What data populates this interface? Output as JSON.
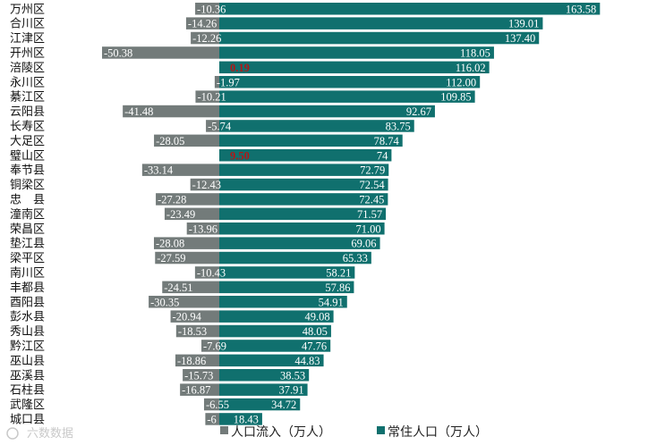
{
  "chart_data": {
    "type": "bar",
    "orientation": "horizontal",
    "categories": [
      "万州区",
      "合川区",
      "江津区",
      "开州区",
      "涪陵区",
      "永川区",
      "綦江区",
      "云阳县",
      "长寿区",
      "大足区",
      "璧山区",
      "奉节县",
      "铜梁区",
      "忠　县",
      "潼南区",
      "荣昌区",
      "垫江县",
      "梁平区",
      "南川区",
      "丰都县",
      "酉阳县",
      "彭水县",
      "秀山县",
      "黔江区",
      "巫山县",
      "巫溪县",
      "石柱县",
      "武隆区",
      "城口县"
    ],
    "series": [
      {
        "name": "人口流入（万人）",
        "color": "#737b7a",
        "highlight_color": "#d9707b",
        "values": [
          -10.36,
          -14.26,
          -12.26,
          -50.38,
          0.19,
          -1.97,
          -10.21,
          -41.48,
          -5.74,
          -28.05,
          9.5,
          -33.14,
          -12.43,
          -27.28,
          -23.49,
          -13.96,
          -28.08,
          -27.59,
          -10.43,
          -24.51,
          -30.35,
          -20.94,
          -18.53,
          -7.69,
          -18.86,
          -15.73,
          -16.87,
          -6.55,
          -6.0
        ],
        "labels": [
          "-10.36",
          "-14.26",
          "-12.26",
          "-50.38",
          "0.19",
          "-1.97",
          "-10.21",
          "-41.48",
          "-5.74",
          "-28.05",
          "9.50",
          "-33.14",
          "-12.43",
          "-27.28",
          "-23.49",
          "-13.96",
          "-28.08",
          "-27.59",
          "-10.43",
          "-24.51",
          "-30.35",
          "-20.94",
          "-18.53",
          "-7.69",
          "-18.86",
          "-15.73",
          "-16.87",
          "-6.55",
          "-6"
        ]
      },
      {
        "name": "常住人口（万人）",
        "color": "#10706e",
        "values": [
          163.58,
          139.01,
          137.4,
          118.05,
          116.02,
          112.0,
          109.85,
          92.67,
          83.75,
          78.74,
          74,
          72.79,
          72.54,
          72.45,
          71.57,
          71.0,
          69.06,
          65.33,
          58.21,
          57.86,
          54.91,
          49.08,
          48.05,
          47.76,
          44.83,
          38.53,
          37.91,
          34.72,
          18.43
        ],
        "labels": [
          "163.58",
          "139.01",
          "137.40",
          "118.05",
          "116.02",
          "112.00",
          "109.85",
          "92.67",
          "83.75",
          "78.74",
          "74",
          "72.79",
          "72.54",
          "72.45",
          "71.57",
          "71.00",
          "69.06",
          "65.33",
          "58.21",
          "57.86",
          "54.91",
          "49.08",
          "48.05",
          "47.76",
          "44.83",
          "38.53",
          "37.91",
          "34.72",
          "18.43"
        ]
      }
    ],
    "xlim": [
      -60,
      170
    ],
    "legend": "bottom-center"
  },
  "watermark": "六数数据",
  "colors": {
    "background": "#ffffff"
  }
}
